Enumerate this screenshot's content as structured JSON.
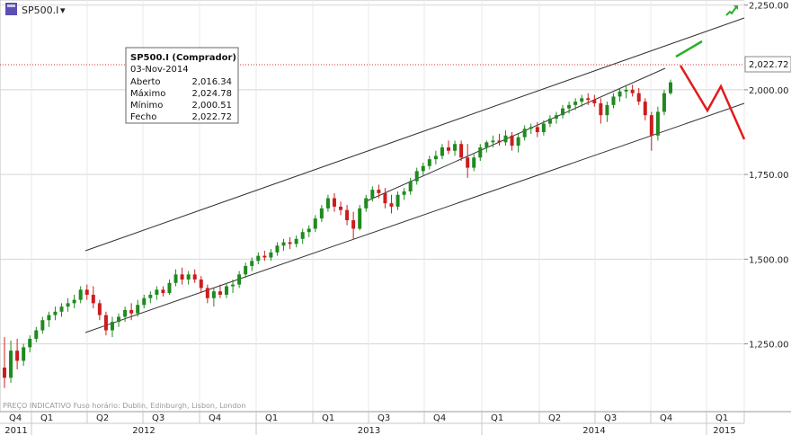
{
  "header": {
    "symbol": "SP500.I",
    "dropdown": "▾"
  },
  "footer_note": "PREÇO INDICATIVO   Fuso horário: Dublin, Edinburgh, Lisbon, London",
  "tooltip": {
    "title": "SP500.I (Comprador)",
    "date": "03-Nov-2014",
    "rows": [
      {
        "label": "Aberto",
        "value": "2,016.34"
      },
      {
        "label": "Máximo",
        "value": "2,024.78"
      },
      {
        "label": "Mínimo",
        "value": "2,000.51"
      },
      {
        "label": "Fecho",
        "value": "2,022.72"
      }
    ]
  },
  "colors": {
    "up": "#1f8a1f",
    "down": "#cc1d1d",
    "grid": "#d4d4d4",
    "channel": "#333333",
    "forecast_down": "#e01b1b",
    "forecast_up": "#28b028",
    "price_line": "#d33333"
  },
  "chart_data": {
    "type": "candlestick",
    "y_axis": {
      "ticks": [
        1250,
        1500,
        1750,
        2000,
        2250
      ],
      "tick_labels": [
        "1,250.00",
        "1,500.00",
        "1,750.00",
        "2,000.00",
        "2,250.00"
      ],
      "ylim": [
        1050,
        2265
      ],
      "position": "right"
    },
    "x_axis": {
      "quarters": [
        "Q4",
        "Q1",
        "Q2",
        "Q3",
        "Q4",
        "Q1",
        "Q1",
        "Q3",
        "Q4",
        "Q1",
        "Q2",
        "Q3",
        "Q4",
        "Q1"
      ],
      "years": [
        "2011",
        "2012",
        "2013",
        "2014",
        "2015"
      ]
    },
    "last_price": {
      "value": 2022.72,
      "label": "2,022.72"
    },
    "candles": [
      {
        "o": 1180,
        "h": 1270,
        "l": 1120,
        "c": 1150
      },
      {
        "o": 1150,
        "h": 1260,
        "l": 1135,
        "c": 1230
      },
      {
        "o": 1230,
        "h": 1265,
        "l": 1175,
        "c": 1200
      },
      {
        "o": 1200,
        "h": 1250,
        "l": 1185,
        "c": 1240
      },
      {
        "o": 1240,
        "h": 1275,
        "l": 1225,
        "c": 1265
      },
      {
        "o": 1265,
        "h": 1300,
        "l": 1255,
        "c": 1290
      },
      {
        "o": 1290,
        "h": 1330,
        "l": 1280,
        "c": 1320
      },
      {
        "o": 1320,
        "h": 1345,
        "l": 1300,
        "c": 1335
      },
      {
        "o": 1335,
        "h": 1360,
        "l": 1320,
        "c": 1345
      },
      {
        "o": 1345,
        "h": 1370,
        "l": 1330,
        "c": 1360
      },
      {
        "o": 1360,
        "h": 1385,
        "l": 1345,
        "c": 1370
      },
      {
        "o": 1370,
        "h": 1395,
        "l": 1355,
        "c": 1380
      },
      {
        "o": 1380,
        "h": 1420,
        "l": 1370,
        "c": 1410
      },
      {
        "o": 1410,
        "h": 1425,
        "l": 1380,
        "c": 1395
      },
      {
        "o": 1395,
        "h": 1420,
        "l": 1355,
        "c": 1370
      },
      {
        "o": 1370,
        "h": 1380,
        "l": 1320,
        "c": 1335
      },
      {
        "o": 1335,
        "h": 1345,
        "l": 1275,
        "c": 1290
      },
      {
        "o": 1290,
        "h": 1330,
        "l": 1270,
        "c": 1315
      },
      {
        "o": 1315,
        "h": 1340,
        "l": 1300,
        "c": 1330
      },
      {
        "o": 1330,
        "h": 1360,
        "l": 1315,
        "c": 1350
      },
      {
        "o": 1350,
        "h": 1370,
        "l": 1320,
        "c": 1340
      },
      {
        "o": 1340,
        "h": 1380,
        "l": 1330,
        "c": 1365
      },
      {
        "o": 1365,
        "h": 1395,
        "l": 1355,
        "c": 1385
      },
      {
        "o": 1385,
        "h": 1405,
        "l": 1370,
        "c": 1395
      },
      {
        "o": 1395,
        "h": 1420,
        "l": 1380,
        "c": 1410
      },
      {
        "o": 1410,
        "h": 1420,
        "l": 1390,
        "c": 1400
      },
      {
        "o": 1400,
        "h": 1440,
        "l": 1395,
        "c": 1430
      },
      {
        "o": 1430,
        "h": 1470,
        "l": 1420,
        "c": 1455
      },
      {
        "o": 1455,
        "h": 1475,
        "l": 1425,
        "c": 1440
      },
      {
        "o": 1440,
        "h": 1465,
        "l": 1425,
        "c": 1455
      },
      {
        "o": 1455,
        "h": 1470,
        "l": 1430,
        "c": 1440
      },
      {
        "o": 1440,
        "h": 1450,
        "l": 1400,
        "c": 1415
      },
      {
        "o": 1415,
        "h": 1425,
        "l": 1370,
        "c": 1385
      },
      {
        "o": 1385,
        "h": 1415,
        "l": 1360,
        "c": 1405
      },
      {
        "o": 1405,
        "h": 1425,
        "l": 1385,
        "c": 1395
      },
      {
        "o": 1395,
        "h": 1430,
        "l": 1385,
        "c": 1420
      },
      {
        "o": 1420,
        "h": 1440,
        "l": 1400,
        "c": 1425
      },
      {
        "o": 1425,
        "h": 1465,
        "l": 1415,
        "c": 1455
      },
      {
        "o": 1455,
        "h": 1490,
        "l": 1445,
        "c": 1480
      },
      {
        "o": 1480,
        "h": 1505,
        "l": 1465,
        "c": 1495
      },
      {
        "o": 1495,
        "h": 1520,
        "l": 1485,
        "c": 1510
      },
      {
        "o": 1510,
        "h": 1525,
        "l": 1495,
        "c": 1505
      },
      {
        "o": 1505,
        "h": 1530,
        "l": 1495,
        "c": 1520
      },
      {
        "o": 1520,
        "h": 1550,
        "l": 1510,
        "c": 1540
      },
      {
        "o": 1540,
        "h": 1560,
        "l": 1525,
        "c": 1550
      },
      {
        "o": 1550,
        "h": 1565,
        "l": 1530,
        "c": 1545
      },
      {
        "o": 1545,
        "h": 1570,
        "l": 1535,
        "c": 1560
      },
      {
        "o": 1560,
        "h": 1590,
        "l": 1545,
        "c": 1580
      },
      {
        "o": 1580,
        "h": 1600,
        "l": 1565,
        "c": 1590
      },
      {
        "o": 1590,
        "h": 1630,
        "l": 1580,
        "c": 1620
      },
      {
        "o": 1620,
        "h": 1660,
        "l": 1610,
        "c": 1650
      },
      {
        "o": 1650,
        "h": 1690,
        "l": 1640,
        "c": 1680
      },
      {
        "o": 1680,
        "h": 1695,
        "l": 1640,
        "c": 1655
      },
      {
        "o": 1655,
        "h": 1670,
        "l": 1630,
        "c": 1645
      },
      {
        "o": 1645,
        "h": 1660,
        "l": 1600,
        "c": 1615
      },
      {
        "o": 1615,
        "h": 1640,
        "l": 1560,
        "c": 1590
      },
      {
        "o": 1590,
        "h": 1660,
        "l": 1585,
        "c": 1650
      },
      {
        "o": 1650,
        "h": 1690,
        "l": 1640,
        "c": 1680
      },
      {
        "o": 1680,
        "h": 1715,
        "l": 1670,
        "c": 1705
      },
      {
        "o": 1705,
        "h": 1720,
        "l": 1680,
        "c": 1695
      },
      {
        "o": 1695,
        "h": 1710,
        "l": 1650,
        "c": 1665
      },
      {
        "o": 1665,
        "h": 1690,
        "l": 1635,
        "c": 1655
      },
      {
        "o": 1655,
        "h": 1700,
        "l": 1645,
        "c": 1690
      },
      {
        "o": 1690,
        "h": 1710,
        "l": 1675,
        "c": 1700
      },
      {
        "o": 1700,
        "h": 1740,
        "l": 1690,
        "c": 1730
      },
      {
        "o": 1730,
        "h": 1770,
        "l": 1720,
        "c": 1760
      },
      {
        "o": 1760,
        "h": 1785,
        "l": 1745,
        "c": 1775
      },
      {
        "o": 1775,
        "h": 1805,
        "l": 1765,
        "c": 1795
      },
      {
        "o": 1795,
        "h": 1820,
        "l": 1780,
        "c": 1805
      },
      {
        "o": 1805,
        "h": 1840,
        "l": 1795,
        "c": 1830
      },
      {
        "o": 1830,
        "h": 1850,
        "l": 1810,
        "c": 1820
      },
      {
        "o": 1820,
        "h": 1850,
        "l": 1805,
        "c": 1840
      },
      {
        "o": 1840,
        "h": 1850,
        "l": 1790,
        "c": 1800
      },
      {
        "o": 1800,
        "h": 1840,
        "l": 1740,
        "c": 1770
      },
      {
        "o": 1770,
        "h": 1810,
        "l": 1760,
        "c": 1800
      },
      {
        "o": 1800,
        "h": 1840,
        "l": 1790,
        "c": 1830
      },
      {
        "o": 1830,
        "h": 1850,
        "l": 1815,
        "c": 1845
      },
      {
        "o": 1845,
        "h": 1865,
        "l": 1830,
        "c": 1850
      },
      {
        "o": 1850,
        "h": 1870,
        "l": 1835,
        "c": 1845
      },
      {
        "o": 1845,
        "h": 1880,
        "l": 1835,
        "c": 1865
      },
      {
        "o": 1865,
        "h": 1875,
        "l": 1820,
        "c": 1835
      },
      {
        "o": 1835,
        "h": 1870,
        "l": 1815,
        "c": 1860
      },
      {
        "o": 1860,
        "h": 1895,
        "l": 1850,
        "c": 1885
      },
      {
        "o": 1885,
        "h": 1900,
        "l": 1870,
        "c": 1890
      },
      {
        "o": 1890,
        "h": 1905,
        "l": 1860,
        "c": 1875
      },
      {
        "o": 1875,
        "h": 1910,
        "l": 1865,
        "c": 1900
      },
      {
        "o": 1900,
        "h": 1925,
        "l": 1890,
        "c": 1915
      },
      {
        "o": 1915,
        "h": 1935,
        "l": 1900,
        "c": 1925
      },
      {
        "o": 1925,
        "h": 1955,
        "l": 1915,
        "c": 1945
      },
      {
        "o": 1945,
        "h": 1965,
        "l": 1930,
        "c": 1955
      },
      {
        "o": 1955,
        "h": 1975,
        "l": 1940,
        "c": 1965
      },
      {
        "o": 1965,
        "h": 1985,
        "l": 1950,
        "c": 1975
      },
      {
        "o": 1975,
        "h": 1990,
        "l": 1955,
        "c": 1970
      },
      {
        "o": 1970,
        "h": 1985,
        "l": 1950,
        "c": 1960
      },
      {
        "o": 1960,
        "h": 1975,
        "l": 1900,
        "c": 1925
      },
      {
        "o": 1925,
        "h": 1965,
        "l": 1905,
        "c": 1955
      },
      {
        "o": 1955,
        "h": 1990,
        "l": 1945,
        "c": 1980
      },
      {
        "o": 1980,
        "h": 2005,
        "l": 1965,
        "c": 1995
      },
      {
        "o": 1995,
        "h": 2010,
        "l": 1975,
        "c": 2000
      },
      {
        "o": 2000,
        "h": 2015,
        "l": 1980,
        "c": 1990
      },
      {
        "o": 1990,
        "h": 2005,
        "l": 1955,
        "c": 1965
      },
      {
        "o": 1965,
        "h": 1975,
        "l": 1910,
        "c": 1925
      },
      {
        "o": 1925,
        "h": 1935,
        "l": 1820,
        "c": 1865
      },
      {
        "o": 1865,
        "h": 1950,
        "l": 1850,
        "c": 1935
      },
      {
        "o": 1935,
        "h": 2000,
        "l": 1925,
        "c": 1990
      },
      {
        "o": 1990,
        "h": 2030,
        "l": 1985,
        "c": 2022
      }
    ]
  }
}
